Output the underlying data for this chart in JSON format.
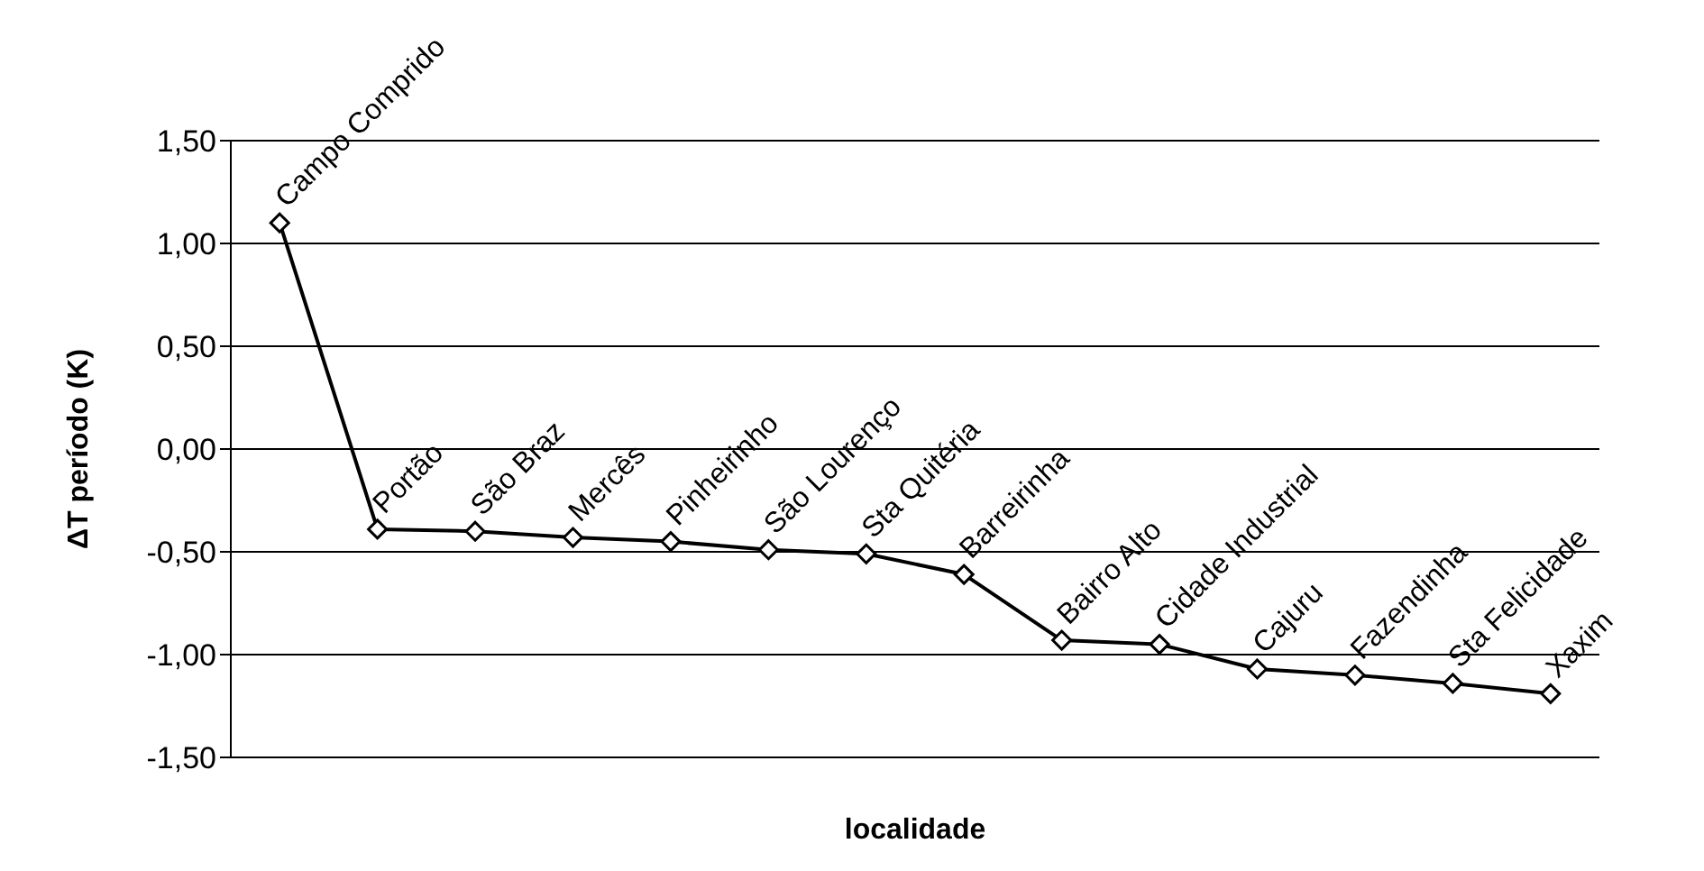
{
  "chart_data": {
    "type": "line",
    "xlabel": "localidade",
    "ylabel": "ΔT período  (K)",
    "categories": [
      null,
      null,
      null,
      null,
      null,
      null,
      null,
      null,
      null,
      null,
      null,
      null,
      null,
      null
    ],
    "series": [
      {
        "color": "#000000",
        "values": [
          1.1,
          -0.39,
          -0.4,
          -0.43,
          -0.45,
          -0.49,
          -0.51,
          -0.61,
          -0.93,
          -0.95,
          -1.07,
          -1.1,
          -1.14,
          -1.19
        ],
        "value_labels": [
          "Campo Comprido",
          "Portão",
          "São Braz",
          "Mercês",
          "Pinheirinho",
          "São Lourenço",
          "Sta Quitéria",
          "Barreirinha",
          "Bairro Alto",
          "Cidade Industrial",
          "Cajuru",
          "Fazendinha",
          "Sta Felicidade",
          "Xaxim"
        ]
      }
    ],
    "ylim": [
      -1.5,
      1.5
    ],
    "yticks": [
      {
        "value": -1.5,
        "label": "-1,50"
      },
      {
        "value": -1,
        "label": "-1,00"
      },
      {
        "value": -0.5,
        "label": "-0,50"
      },
      {
        "value": 0,
        "label": "0,00"
      },
      {
        "value": 0.5,
        "label": "0,50"
      },
      {
        "value": 1,
        "label": "1,00"
      },
      {
        "value": 1.5,
        "label": "1,50"
      }
    ],
    "grid": "y",
    "marker": "diamond",
    "line_style": "solid",
    "legend": false
  }
}
